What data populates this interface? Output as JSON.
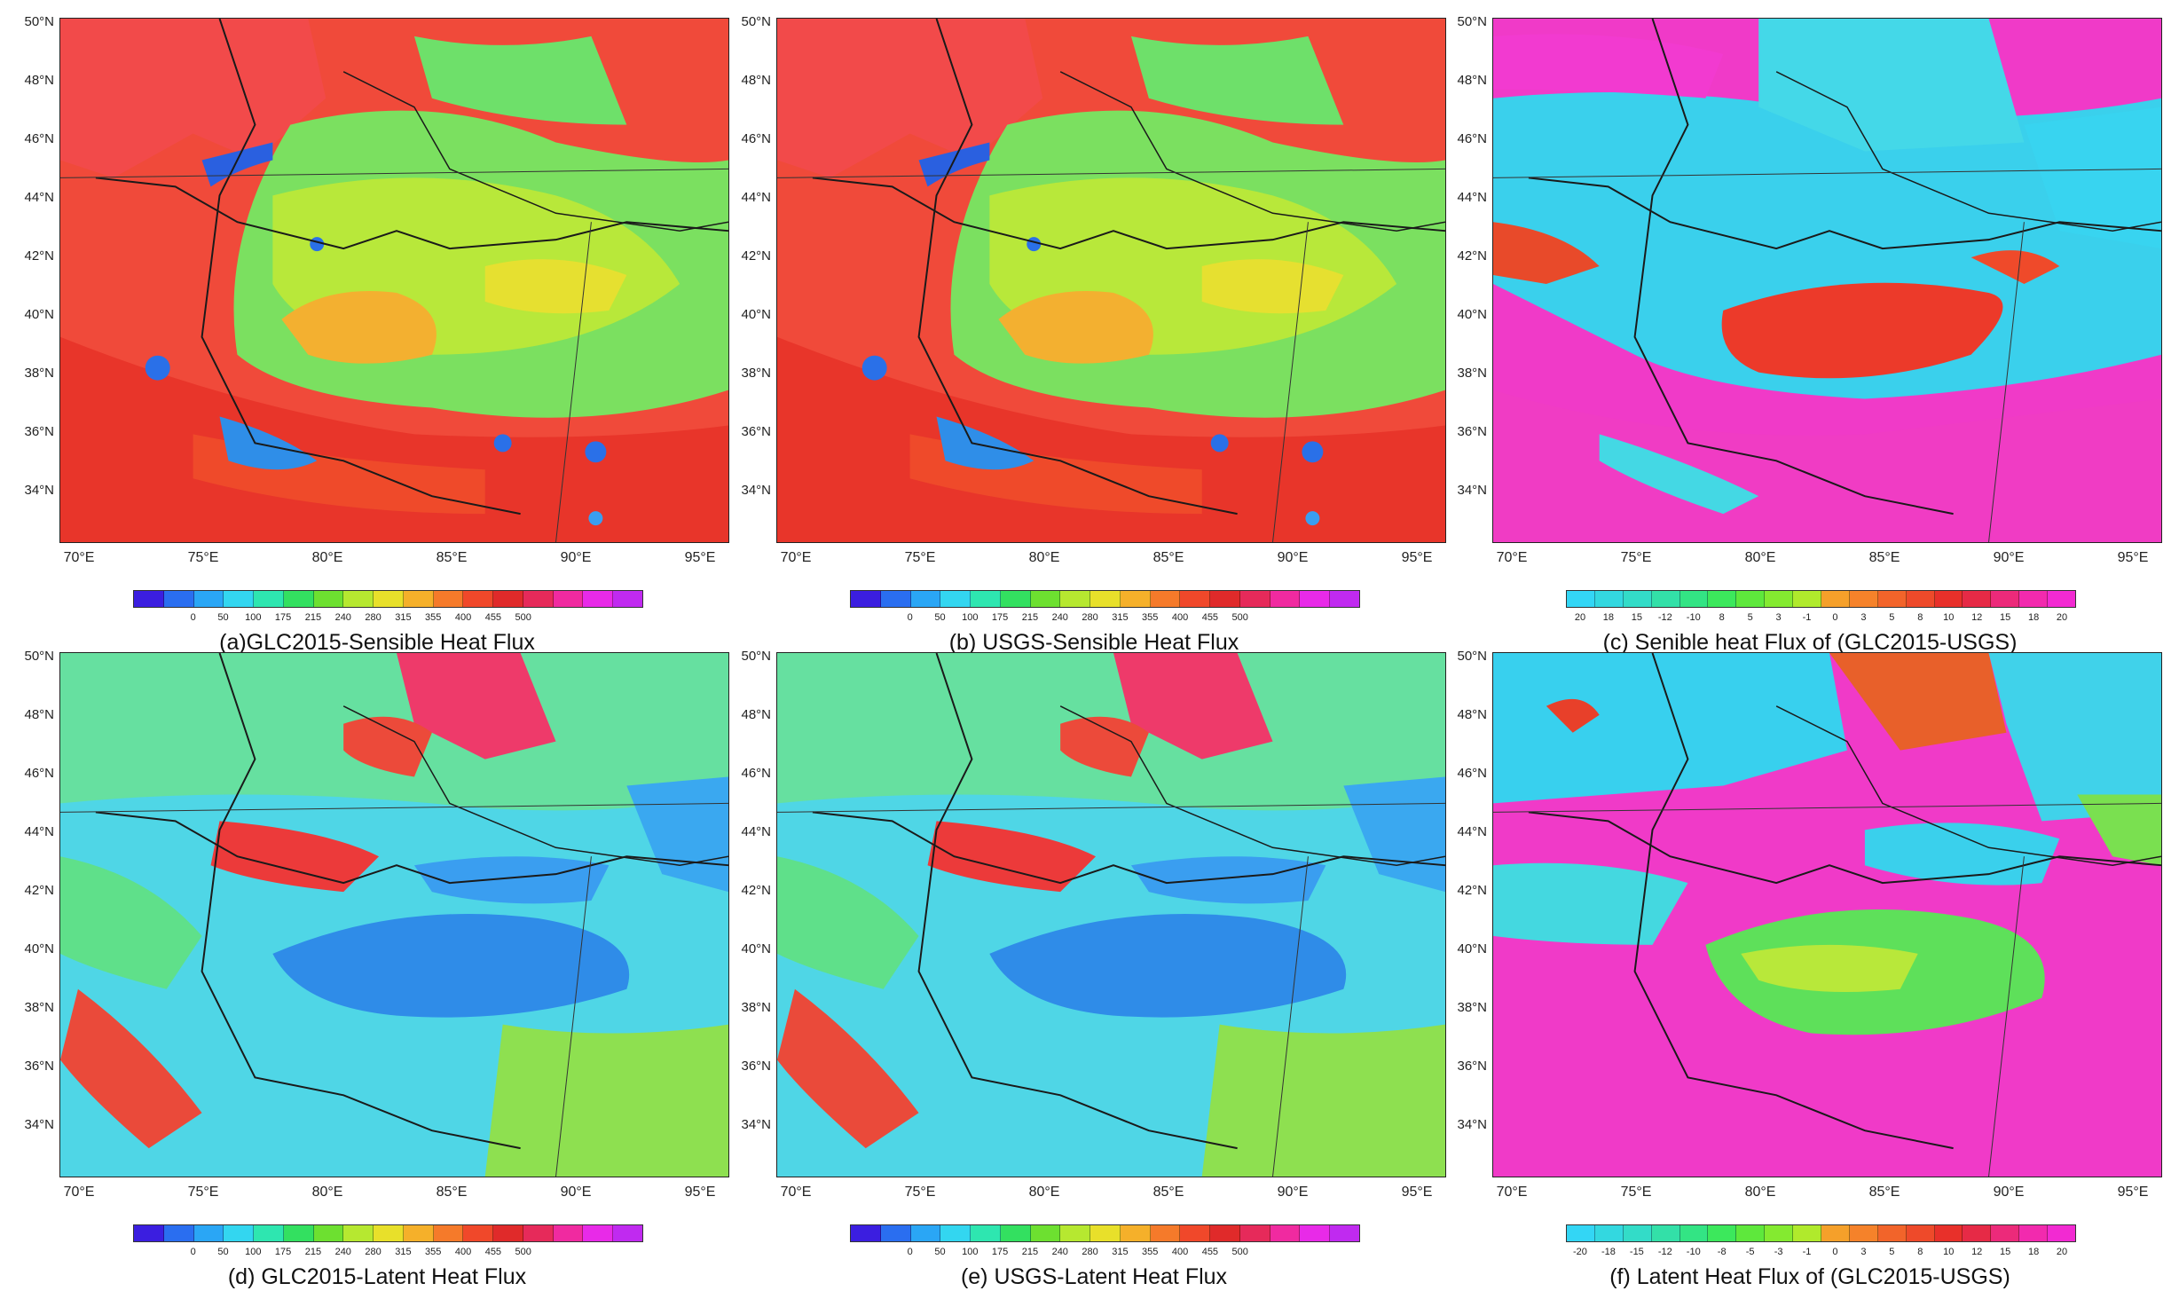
{
  "latitude_labels": [
    "50°N",
    "48°N",
    "46°N",
    "44°N",
    "42°N",
    "40°N",
    "38°N",
    "36°N",
    "34°N"
  ],
  "longitude_labels": [
    "70°E",
    "75°E",
    "80°E",
    "85°E",
    "90°E",
    "95°E"
  ],
  "colorbars": {
    "flux": {
      "labels": [
        "0",
        "50",
        "100",
        "175",
        "215",
        "240",
        "280",
        "315",
        "355",
        "400",
        "455",
        "500"
      ],
      "colors": [
        "#3b1ee0",
        "#2a6ef0",
        "#2aa6f5",
        "#33d6f0",
        "#2ee6b0",
        "#33e060",
        "#6de030",
        "#b6e830",
        "#e8e02a",
        "#f5b02a",
        "#f57a2a",
        "#f0482a",
        "#e02a2a",
        "#e62a5a",
        "#f02aa0",
        "#e82ae8",
        "#c02af0"
      ]
    },
    "diff": {
      "labels": [
        "20",
        "18",
        "15",
        "-12",
        "-10",
        "8",
        "5",
        "3",
        "-1",
        "0",
        "3",
        "5",
        "8",
        "10",
        "12",
        "15",
        "18",
        "20"
      ],
      "labels_f": [
        "-20",
        "-18",
        "-15",
        "-12",
        "-10",
        "-8",
        "-5",
        "-3",
        "-1",
        "0",
        "3",
        "5",
        "8",
        "10",
        "12",
        "15",
        "18",
        "20"
      ],
      "colors": [
        "#33d6f5",
        "#33d8e0",
        "#33dcc8",
        "#33e0a8",
        "#33e484",
        "#3ce85c",
        "#5ee83c",
        "#84ea30",
        "#b0ea2c",
        "#f5a02a",
        "#f5822a",
        "#f2642a",
        "#ee4a2a",
        "#e8302a",
        "#e62a46",
        "#ec2a7a",
        "#f22aae",
        "#f22ad2"
      ]
    }
  },
  "panels": [
    {
      "id": "a",
      "caption": "(a)GLC2015-Sensible Heat Flux",
      "colorbar": "flux"
    },
    {
      "id": "b",
      "caption": "(b) USGS-Sensible Heat Flux",
      "colorbar": "flux"
    },
    {
      "id": "c",
      "caption": "(c) Senible heat Flux of (GLC2015-USGS)",
      "colorbar": "diff"
    },
    {
      "id": "d",
      "caption": "(d) GLC2015-Latent Heat Flux",
      "colorbar": "flux"
    },
    {
      "id": "e",
      "caption": "(e) USGS-Latent Heat Flux",
      "colorbar": "flux"
    },
    {
      "id": "f",
      "caption": "(f) Latent Heat Flux of (GLC2015-USGS)",
      "colorbar": "diff_f"
    }
  ],
  "palette": {
    "sensible_background": "#f04a3a",
    "latent_background": "#4fd6e6",
    "diff_sensible_background": "#f03ac8",
    "diff_latent_background": "#38d0ee",
    "border_lines": "#1a1a1a"
  }
}
